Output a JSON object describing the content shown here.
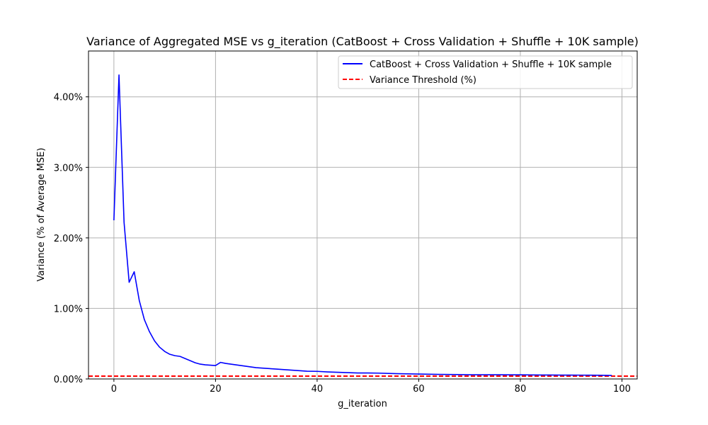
{
  "chart_data": {
    "type": "line",
    "title": "Variance of Aggregated MSE vs g_iteration (CatBoost + Cross Validation + Shuffle + 10K sample)",
    "xlabel": "g_iteration",
    "ylabel": "Variance (% of Average MSE)",
    "xlim": [
      -5,
      103
    ],
    "ylim": [
      0,
      4.65
    ],
    "xticks": [
      0,
      20,
      40,
      60,
      80,
      100
    ],
    "xtick_labels": [
      "0",
      "20",
      "40",
      "60",
      "80",
      "100"
    ],
    "yticks": [
      0,
      1,
      2,
      3,
      4
    ],
    "ytick_labels": [
      "0.00%",
      "1.00%",
      "2.00%",
      "3.00%",
      "4.00%"
    ],
    "grid": true,
    "legend_position": "upper right",
    "series": [
      {
        "name": "CatBoost + Cross Validation + Shuffle + 10K sample",
        "color": "#0000ff",
        "style": "solid",
        "x": [
          0,
          1,
          2,
          3,
          4,
          5,
          6,
          7,
          8,
          9,
          10,
          11,
          12,
          13,
          14,
          15,
          16,
          17,
          18,
          19,
          20,
          21,
          22,
          24,
          26,
          28,
          30,
          32,
          34,
          36,
          38,
          40,
          42,
          44,
          46,
          48,
          50,
          52,
          54,
          56,
          58,
          60,
          62,
          64,
          66,
          68,
          70,
          72,
          74,
          76,
          78,
          80,
          82,
          84,
          86,
          88,
          90,
          92,
          94,
          96,
          98
        ],
        "y": [
          2.25,
          4.31,
          2.22,
          1.37,
          1.52,
          1.11,
          0.84,
          0.67,
          0.54,
          0.45,
          0.39,
          0.35,
          0.33,
          0.32,
          0.29,
          0.26,
          0.23,
          0.21,
          0.2,
          0.195,
          0.19,
          0.235,
          0.22,
          0.2,
          0.18,
          0.16,
          0.15,
          0.14,
          0.13,
          0.12,
          0.11,
          0.108,
          0.1,
          0.095,
          0.09,
          0.085,
          0.085,
          0.083,
          0.078,
          0.075,
          0.072,
          0.07,
          0.067,
          0.065,
          0.063,
          0.062,
          0.06,
          0.06,
          0.06,
          0.06,
          0.058,
          0.058,
          0.057,
          0.056,
          0.056,
          0.055,
          0.055,
          0.054,
          0.053,
          0.052,
          0.05
        ]
      },
      {
        "name": "Variance Threshold (%)",
        "color": "#ff0000",
        "style": "dashed",
        "y_constant": 0.04
      }
    ]
  }
}
